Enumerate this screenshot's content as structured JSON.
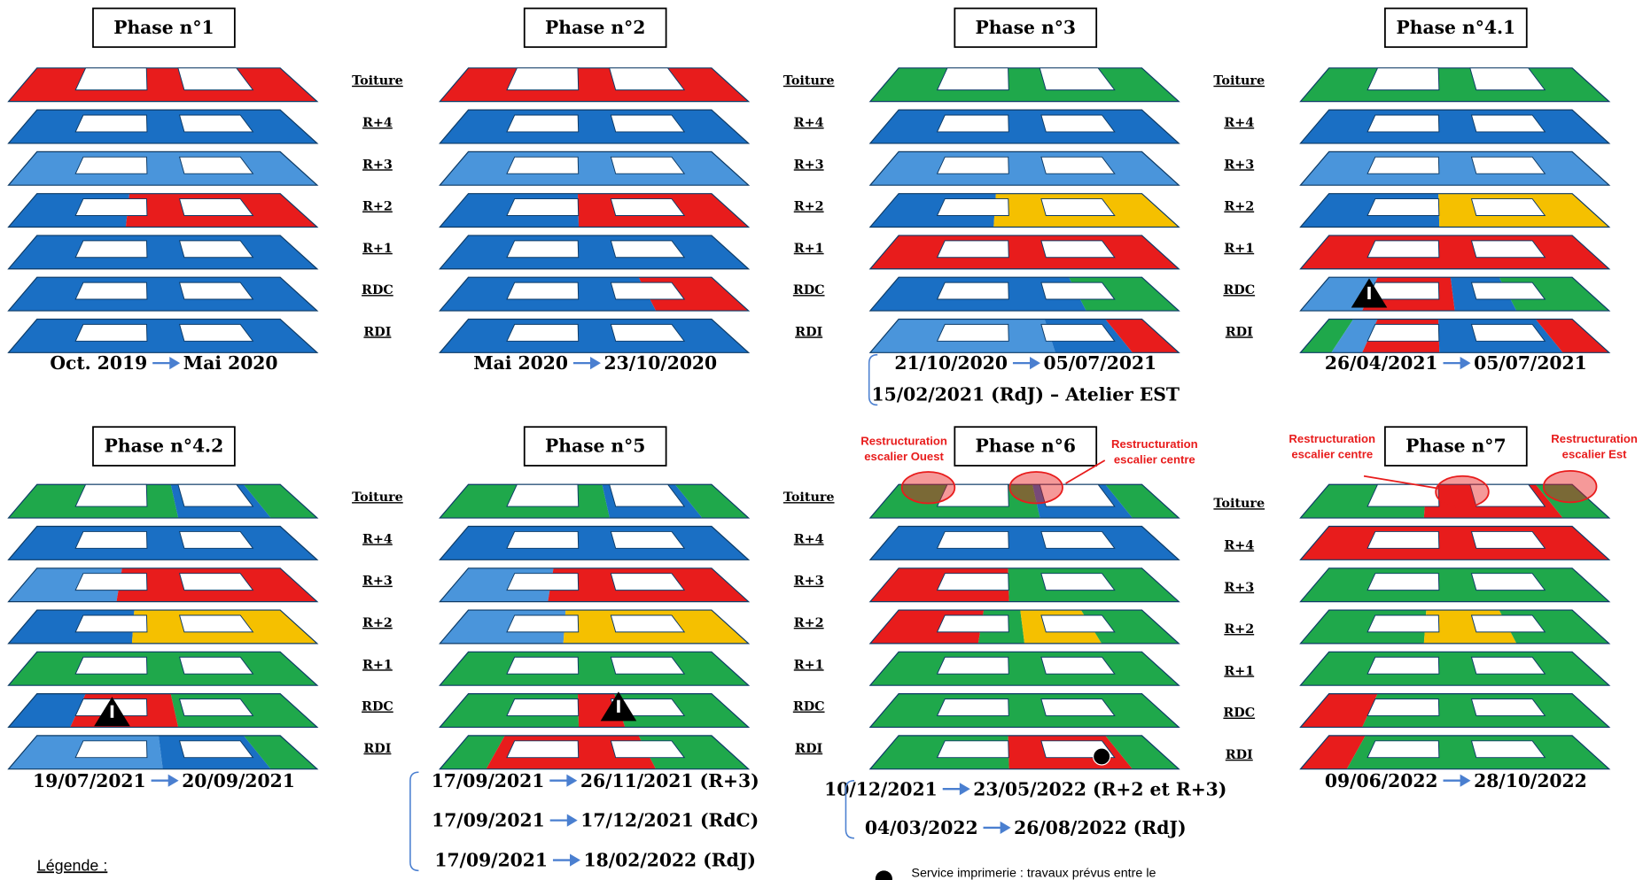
{
  "phases": [
    {
      "title": "Phase n°1",
      "floor_labels": [
        "Toiture",
        "R+4",
        "R+3",
        "R+2",
        "R+1",
        "RDC",
        "RDI"
      ],
      "dates": [
        {
          "from": "Oct. 2019",
          "to": "Mai 2020"
        }
      ]
    },
    {
      "title": "Phase n°2",
      "floor_labels": [
        "Toiture",
        "R+4",
        "R+3",
        "R+2",
        "R+1",
        "RDC",
        "RDI"
      ],
      "dates": [
        {
          "from": "Mai 2020",
          "to": "23/10/2020"
        }
      ]
    },
    {
      "title": "Phase n°3",
      "floor_labels": [
        "Toiture",
        "R+4",
        "R+3",
        "R+2",
        "R+1",
        "RDC",
        "RDI"
      ],
      "dates": [
        {
          "from": "21/10/2020",
          "to": "05/07/2021"
        },
        {
          "text": "15/02/2021 (RdJ) – Atelier EST"
        }
      ]
    },
    {
      "title": "Phase n°4.1",
      "floor_labels": [
        "Toiture",
        "R+4",
        "R+3",
        "R+2",
        "R+1",
        "RDC",
        "RDI"
      ],
      "dates": [
        {
          "from": "26/04/2021",
          "to": "05/07/2021"
        }
      ]
    },
    {
      "title": "Phase n°4.2",
      "floor_labels": [
        "Toiture",
        "R+4",
        "R+3",
        "R+2",
        "R+1",
        "RDC",
        "RDI"
      ],
      "dates": [
        {
          "from": "19/07/2021",
          "to": "20/09/2021"
        }
      ]
    },
    {
      "title": "Phase n°5",
      "floor_labels": [
        "Toiture",
        "R+4",
        "R+3",
        "R+2",
        "R+1",
        "RDC",
        "RDI"
      ],
      "dates": [
        {
          "from": "17/09/2021",
          "to": "26/11/2021 (R+3)"
        },
        {
          "from": "17/09/2021",
          "to": "17/12/2021 (RdC)"
        },
        {
          "from": "17/09/2021",
          "to": "18/02/2022 (RdJ)"
        }
      ]
    },
    {
      "title": "Phase n°6",
      "floor_labels": [
        "Toiture",
        "R+4",
        "R+3",
        "R+2",
        "R+1",
        "RDC",
        "RDI"
      ],
      "dates": [
        {
          "from": "10/12/2021",
          "to": "23/05/2022 (R+2 et R+3)"
        },
        {
          "from": "04/03/2022",
          "to": "26/08/2022 (RdJ)"
        }
      ],
      "annotations": [
        {
          "lines": [
            "Restructuration",
            "escalier Ouest"
          ]
        },
        {
          "lines": [
            "Restructuration",
            "escalier centre"
          ]
        }
      ]
    },
    {
      "title": "Phase n°7",
      "floor_labels": [
        "Toiture",
        "R+4",
        "R+3",
        "R+2",
        "R+1",
        "RDC",
        "RDI"
      ],
      "dates": [
        {
          "from": "09/06/2022",
          "to": "28/10/2022"
        }
      ],
      "annotations": [
        {
          "lines": [
            "Restructuration",
            "escalier centre"
          ]
        },
        {
          "lines": [
            "Restructuration",
            "escalier Est"
          ]
        }
      ]
    }
  ],
  "legend": {
    "title": "Légende :",
    "note": "Service imprimerie : travaux prévus entre le"
  }
}
